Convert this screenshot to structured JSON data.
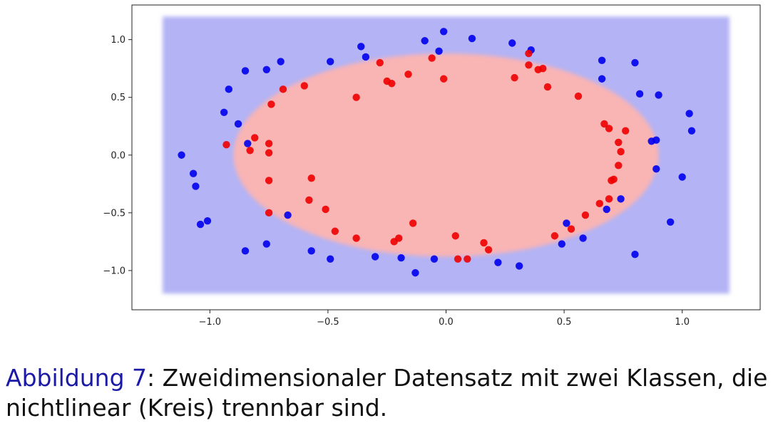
{
  "chart_data": {
    "type": "scatter",
    "title": "",
    "xlabel": "",
    "ylabel": "",
    "xlim": [
      -1.33,
      1.33
    ],
    "ylim": [
      -1.34,
      1.3
    ],
    "xticks": [
      -1.0,
      -0.5,
      0.0,
      0.5,
      1.0
    ],
    "yticks": [
      -1.0,
      -0.5,
      0.0,
      0.5,
      1.0
    ],
    "xtick_labels": [
      "−1.0",
      "−0.5",
      "0.0",
      "0.5",
      "1.0"
    ],
    "ytick_labels": [
      "−1.0",
      "−0.5",
      "0.0",
      "0.5",
      "1.0"
    ],
    "grid": false,
    "background_region": {
      "x_range": [
        -1.2,
        1.2
      ],
      "y_range": [
        -1.2,
        1.2
      ],
      "color": "#b3b3f5"
    },
    "decision_region": {
      "shape": "ellipse",
      "center": [
        0.0,
        0.0
      ],
      "radius_x": 0.9,
      "radius_y": 0.88,
      "color": "#f9b4b4"
    },
    "series": [
      {
        "color": "#0000ee",
        "points": [
          [
            -1.12,
            0.0
          ],
          [
            -1.07,
            -0.16
          ],
          [
            -1.06,
            -0.27
          ],
          [
            -1.04,
            -0.6
          ],
          [
            -1.01,
            -0.57
          ],
          [
            -0.94,
            0.37
          ],
          [
            -0.92,
            0.57
          ],
          [
            -0.88,
            0.27
          ],
          [
            -0.85,
            0.73
          ],
          [
            -0.84,
            0.1
          ],
          [
            -0.85,
            -0.83
          ],
          [
            -0.76,
            0.74
          ],
          [
            -0.76,
            -0.77
          ],
          [
            -0.7,
            0.81
          ],
          [
            -0.67,
            -0.52
          ],
          [
            -0.57,
            -0.83
          ],
          [
            -0.49,
            0.81
          ],
          [
            -0.49,
            -0.9
          ],
          [
            -0.36,
            0.94
          ],
          [
            -0.34,
            0.85
          ],
          [
            -0.3,
            -0.88
          ],
          [
            -0.19,
            -0.89
          ],
          [
            -0.13,
            -1.02
          ],
          [
            -0.09,
            0.99
          ],
          [
            -0.03,
            0.9
          ],
          [
            -0.01,
            1.07
          ],
          [
            -0.05,
            -0.9
          ],
          [
            0.11,
            1.01
          ],
          [
            0.22,
            -0.93
          ],
          [
            0.28,
            0.97
          ],
          [
            0.31,
            -0.96
          ],
          [
            0.36,
            0.91
          ],
          [
            0.49,
            -0.77
          ],
          [
            0.51,
            -0.59
          ],
          [
            0.58,
            -0.72
          ],
          [
            0.66,
            0.82
          ],
          [
            0.66,
            0.66
          ],
          [
            0.68,
            -0.47
          ],
          [
            0.74,
            -0.38
          ],
          [
            0.8,
            0.8
          ],
          [
            0.8,
            -0.86
          ],
          [
            0.82,
            0.53
          ],
          [
            0.87,
            0.12
          ],
          [
            0.89,
            0.13
          ],
          [
            0.89,
            -0.12
          ],
          [
            0.9,
            0.52
          ],
          [
            0.95,
            -0.58
          ],
          [
            1.0,
            -0.19
          ],
          [
            1.03,
            0.36
          ],
          [
            1.04,
            0.21
          ]
        ]
      },
      {
        "color": "#ee0000",
        "points": [
          [
            -0.93,
            0.09
          ],
          [
            -0.83,
            0.04
          ],
          [
            -0.81,
            0.15
          ],
          [
            -0.75,
            0.1
          ],
          [
            -0.75,
            0.02
          ],
          [
            -0.75,
            -0.22
          ],
          [
            -0.75,
            -0.5
          ],
          [
            -0.74,
            0.44
          ],
          [
            -0.69,
            0.57
          ],
          [
            -0.6,
            0.6
          ],
          [
            -0.58,
            -0.39
          ],
          [
            -0.57,
            -0.2
          ],
          [
            -0.51,
            -0.47
          ],
          [
            -0.47,
            -0.66
          ],
          [
            -0.38,
            0.5
          ],
          [
            -0.38,
            -0.72
          ],
          [
            -0.28,
            0.8
          ],
          [
            -0.25,
            0.64
          ],
          [
            -0.23,
            0.62
          ],
          [
            -0.22,
            -0.75
          ],
          [
            -0.2,
            -0.72
          ],
          [
            -0.16,
            0.7
          ],
          [
            -0.14,
            -0.59
          ],
          [
            -0.06,
            0.84
          ],
          [
            -0.01,
            0.66
          ],
          [
            0.04,
            -0.7
          ],
          [
            0.05,
            -0.9
          ],
          [
            0.09,
            -0.9
          ],
          [
            0.16,
            -0.76
          ],
          [
            0.18,
            -0.82
          ],
          [
            0.29,
            0.67
          ],
          [
            0.35,
            0.78
          ],
          [
            0.35,
            0.88
          ],
          [
            0.39,
            0.74
          ],
          [
            0.41,
            0.75
          ],
          [
            0.43,
            0.59
          ],
          [
            0.46,
            -0.7
          ],
          [
            0.56,
            0.51
          ],
          [
            0.53,
            -0.64
          ],
          [
            0.59,
            -0.52
          ],
          [
            0.65,
            -0.42
          ],
          [
            0.67,
            0.27
          ],
          [
            0.69,
            0.23
          ],
          [
            0.69,
            -0.38
          ],
          [
            0.7,
            -0.22
          ],
          [
            0.71,
            -0.21
          ],
          [
            0.73,
            0.11
          ],
          [
            0.73,
            -0.09
          ],
          [
            0.74,
            0.03
          ],
          [
            0.76,
            0.21
          ]
        ]
      }
    ]
  },
  "caption": {
    "label": "Abbildung 7",
    "separator": ": ",
    "text": "Zweidimensionaler Datensatz mit zwei Klassen, die nichtlinear (Kreis) trennbar sind."
  }
}
